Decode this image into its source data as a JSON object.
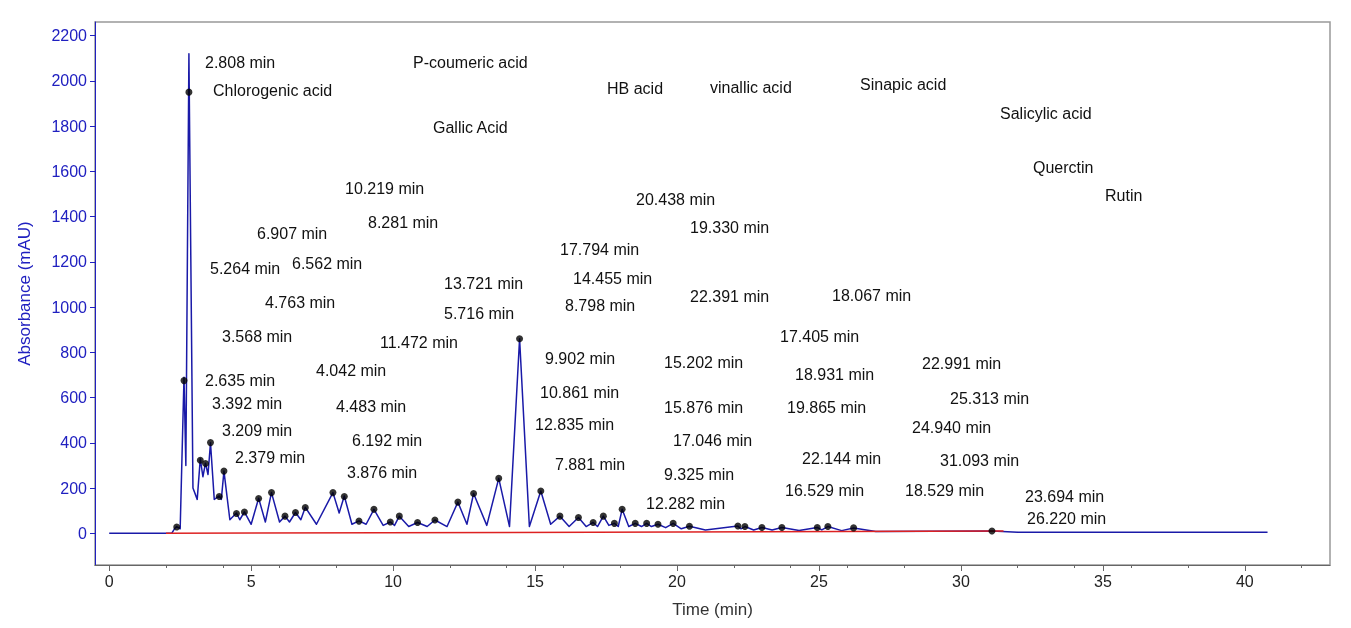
{
  "chart_data": {
    "type": "line",
    "xlabel": "Time (min)",
    "ylabel": "Absorbance (mAU)",
    "xlim": [
      -0.5,
      43
    ],
    "xticks": [
      0,
      5,
      10,
      15,
      20,
      25,
      30,
      35,
      40
    ],
    "ylim": [
      -140,
      2260
    ],
    "yticks": [
      0,
      200,
      400,
      600,
      800,
      1000,
      1200,
      1400,
      1600,
      1800,
      2000,
      2200
    ],
    "grid": false,
    "series": [
      {
        "type": "line",
        "color": "#1a1aa8",
        "marker": "none",
        "x": [
          0,
          2.2,
          2.3,
          2.379,
          2.5,
          2.635,
          2.7,
          2.808,
          2.95,
          3.1,
          3.209,
          3.3,
          3.392,
          3.48,
          3.568,
          3.7,
          3.876,
          3.95,
          4.042,
          4.25,
          4.483,
          4.6,
          4.763,
          5.0,
          5.264,
          5.5,
          5.716,
          6.0,
          6.192,
          6.35,
          6.562,
          6.75,
          6.907,
          7.3,
          7.881,
          8.1,
          8.281,
          8.55,
          8.798,
          9.05,
          9.325,
          9.65,
          9.902,
          10.05,
          10.219,
          10.55,
          10.861,
          11.2,
          11.472,
          11.9,
          12.282,
          12.6,
          12.835,
          13.3,
          13.721,
          14.1,
          14.455,
          14.8,
          15.202,
          15.55,
          15.876,
          16.2,
          16.529,
          16.8,
          17.046,
          17.2,
          17.405,
          17.6,
          17.794,
          17.93,
          18.067,
          18.3,
          18.529,
          18.75,
          18.931,
          19.1,
          19.33,
          19.6,
          19.865,
          20.15,
          20.438,
          21,
          22.144,
          22.25,
          22.391,
          22.7,
          22.991,
          23.35,
          23.694,
          24.3,
          24.94,
          25.1,
          25.313,
          25.8,
          26.22,
          27,
          31.093,
          32,
          40.8
        ],
        "values": [
          0,
          0,
          20,
          30,
          20,
          690,
          300,
          2120,
          200,
          150,
          330,
          250,
          310,
          260,
          400,
          150,
          165,
          150,
          275,
          60,
          90,
          60,
          95,
          40,
          155,
          50,
          180,
          50,
          76,
          50,
          92,
          60,
          115,
          40,
          180,
          90,
          165,
          40,
          55,
          40,
          106,
          35,
          50,
          35,
          76,
          30,
          48,
          30,
          59,
          30,
          138,
          40,
          176,
          35,
          243,
          30,
          860,
          30,
          187,
          40,
          76,
          30,
          70,
          30,
          48,
          30,
          76,
          35,
          44,
          30,
          106,
          30,
          44,
          30,
          44,
          30,
          40,
          25,
          44,
          20,
          31,
          15,
          32,
          20,
          30,
          15,
          26,
          15,
          26,
          12,
          26,
          15,
          30,
          12,
          24,
          8,
          10,
          5,
          5
        ]
      },
      {
        "type": "scatter",
        "color": "#000000",
        "marker": "circle",
        "x": [
          2.379,
          2.635,
          2.808,
          3.209,
          3.392,
          3.568,
          3.876,
          4.042,
          4.483,
          4.763,
          5.264,
          5.716,
          6.192,
          6.562,
          6.907,
          7.881,
          8.281,
          8.798,
          9.325,
          9.902,
          10.219,
          10.861,
          11.472,
          12.282,
          12.835,
          13.721,
          14.455,
          15.202,
          15.876,
          16.529,
          17.046,
          17.405,
          17.794,
          18.067,
          18.529,
          18.931,
          19.33,
          19.865,
          20.438,
          22.144,
          22.391,
          22.991,
          23.694,
          24.94,
          25.313,
          26.22,
          31.093
        ],
        "values": [
          28,
          675,
          1950,
          323,
          309,
          401,
          163,
          275,
          88,
          94,
          154,
          180,
          76,
          92,
          114,
          180,
          163,
          54,
          106,
          50,
          76,
          48,
          59,
          138,
          176,
          243,
          860,
          187,
          76,
          70,
          48,
          76,
          44,
          106,
          44,
          44,
          40,
          44,
          31,
          32,
          30,
          26,
          26,
          26,
          30,
          24,
          10
        ]
      },
      {
        "type": "line",
        "color": "#dd2222",
        "marker": "none",
        "x": [
          2.0,
          31.5
        ],
        "values": [
          0,
          10
        ]
      }
    ],
    "annotations": [
      "2.808 min",
      "Chlorogenic acid",
      "P-coumeric acid",
      "Gallic Acid",
      "HB acid",
      "vinallic acid",
      "Sinapic acid",
      "Salicylic acid",
      "Querctin",
      "Rutin",
      "10.219 min",
      "8.281 min",
      "6.907 min",
      "6.562 min",
      "5.264 min",
      "4.763 min",
      "3.568 min",
      "2.635 min",
      "3.392 min",
      "3.209 min",
      "2.379 min",
      "4.042 min",
      "4.483 min",
      "6.192 min",
      "3.876 min",
      "11.472 min",
      "5.716 min",
      "13.721 min",
      "14.455 min",
      "17.794 min",
      "8.798 min",
      "9.902 min",
      "10.861 min",
      "12.835 min",
      "7.881 min",
      "20.438 min",
      "19.330 min",
      "22.391 min",
      "15.202 min",
      "15.876 min",
      "17.046 min",
      "9.325 min",
      "12.282 min",
      "18.067 min",
      "17.405 min",
      "18.931 min",
      "19.865 min",
      "22.144 min",
      "16.529 min",
      "18.529 min",
      "22.991 min",
      "25.313 min",
      "24.940 min",
      "31.093 min",
      "23.694 min",
      "26.220 min"
    ]
  }
}
